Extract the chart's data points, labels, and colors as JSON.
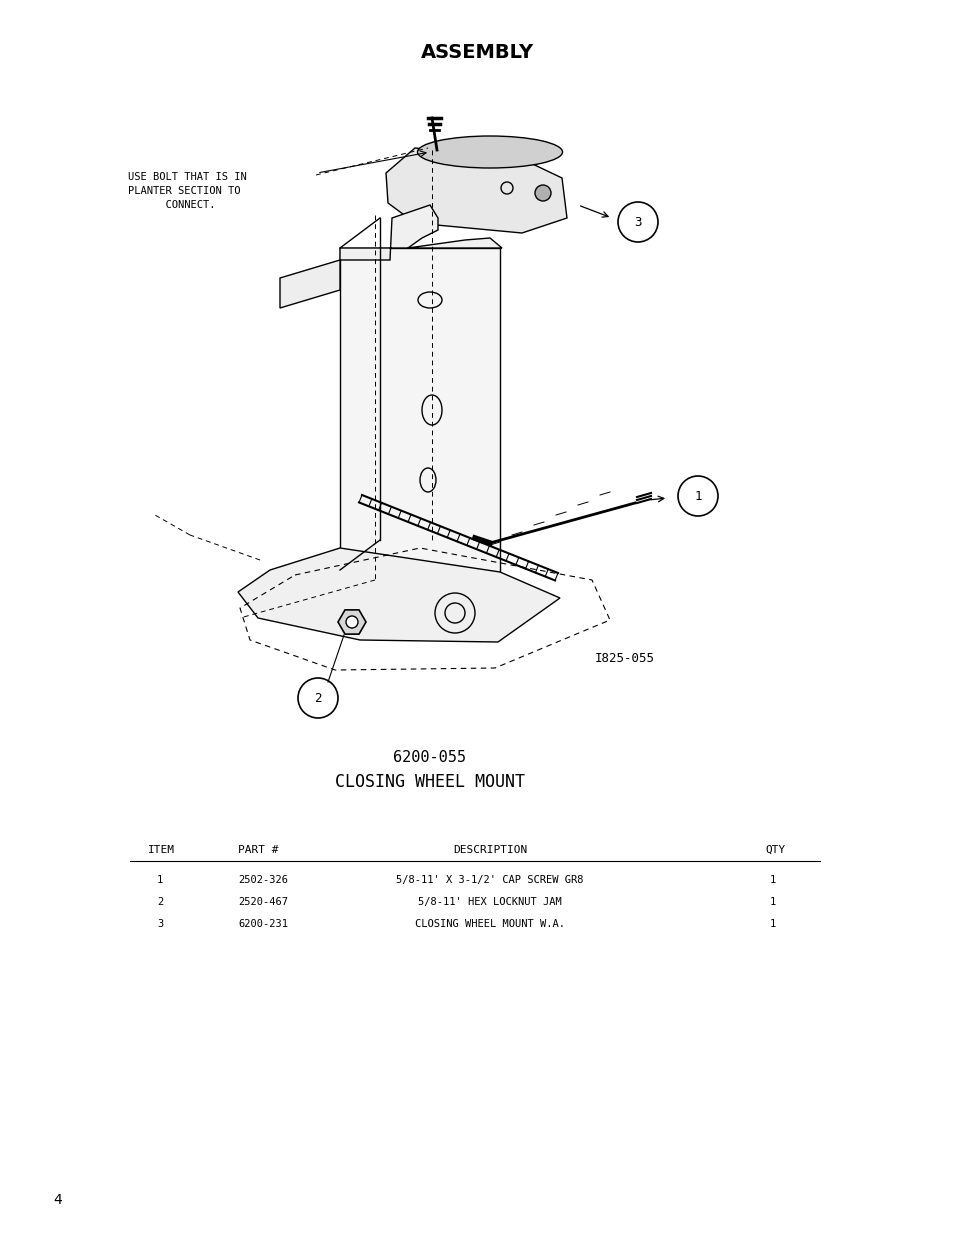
{
  "title": "ASSEMBLY",
  "page_number": "4",
  "diagram_title_line1": "6200-055",
  "diagram_title_line2": "CLOSING WHEEL MOUNT",
  "image_ref": "I825-055",
  "annotation_text": "USE BOLT THAT IS IN\nPLANTER SECTION TO\n      CONNECT.",
  "table_headers": [
    "ITEM",
    "PART #",
    "DESCRIPTION",
    "QTY"
  ],
  "table_rows": [
    [
      "1",
      "2502-326",
      "5/8-11' X 3-1/2' CAP SCREW GR8",
      "1"
    ],
    [
      "2",
      "2520-467",
      "5/8-11' HEX LOCKNUT JAM",
      "1"
    ],
    [
      "3",
      "6200-231",
      "CLOSING WHEEL MOUNT W.A.",
      "1"
    ]
  ],
  "bg_color": "#ffffff",
  "text_color": "#000000",
  "line_color": "#000000",
  "font_size_title": 14,
  "font_size_diagram_title": 11,
  "font_size_table": 8,
  "font_size_annotation": 7.5,
  "font_size_page": 10
}
